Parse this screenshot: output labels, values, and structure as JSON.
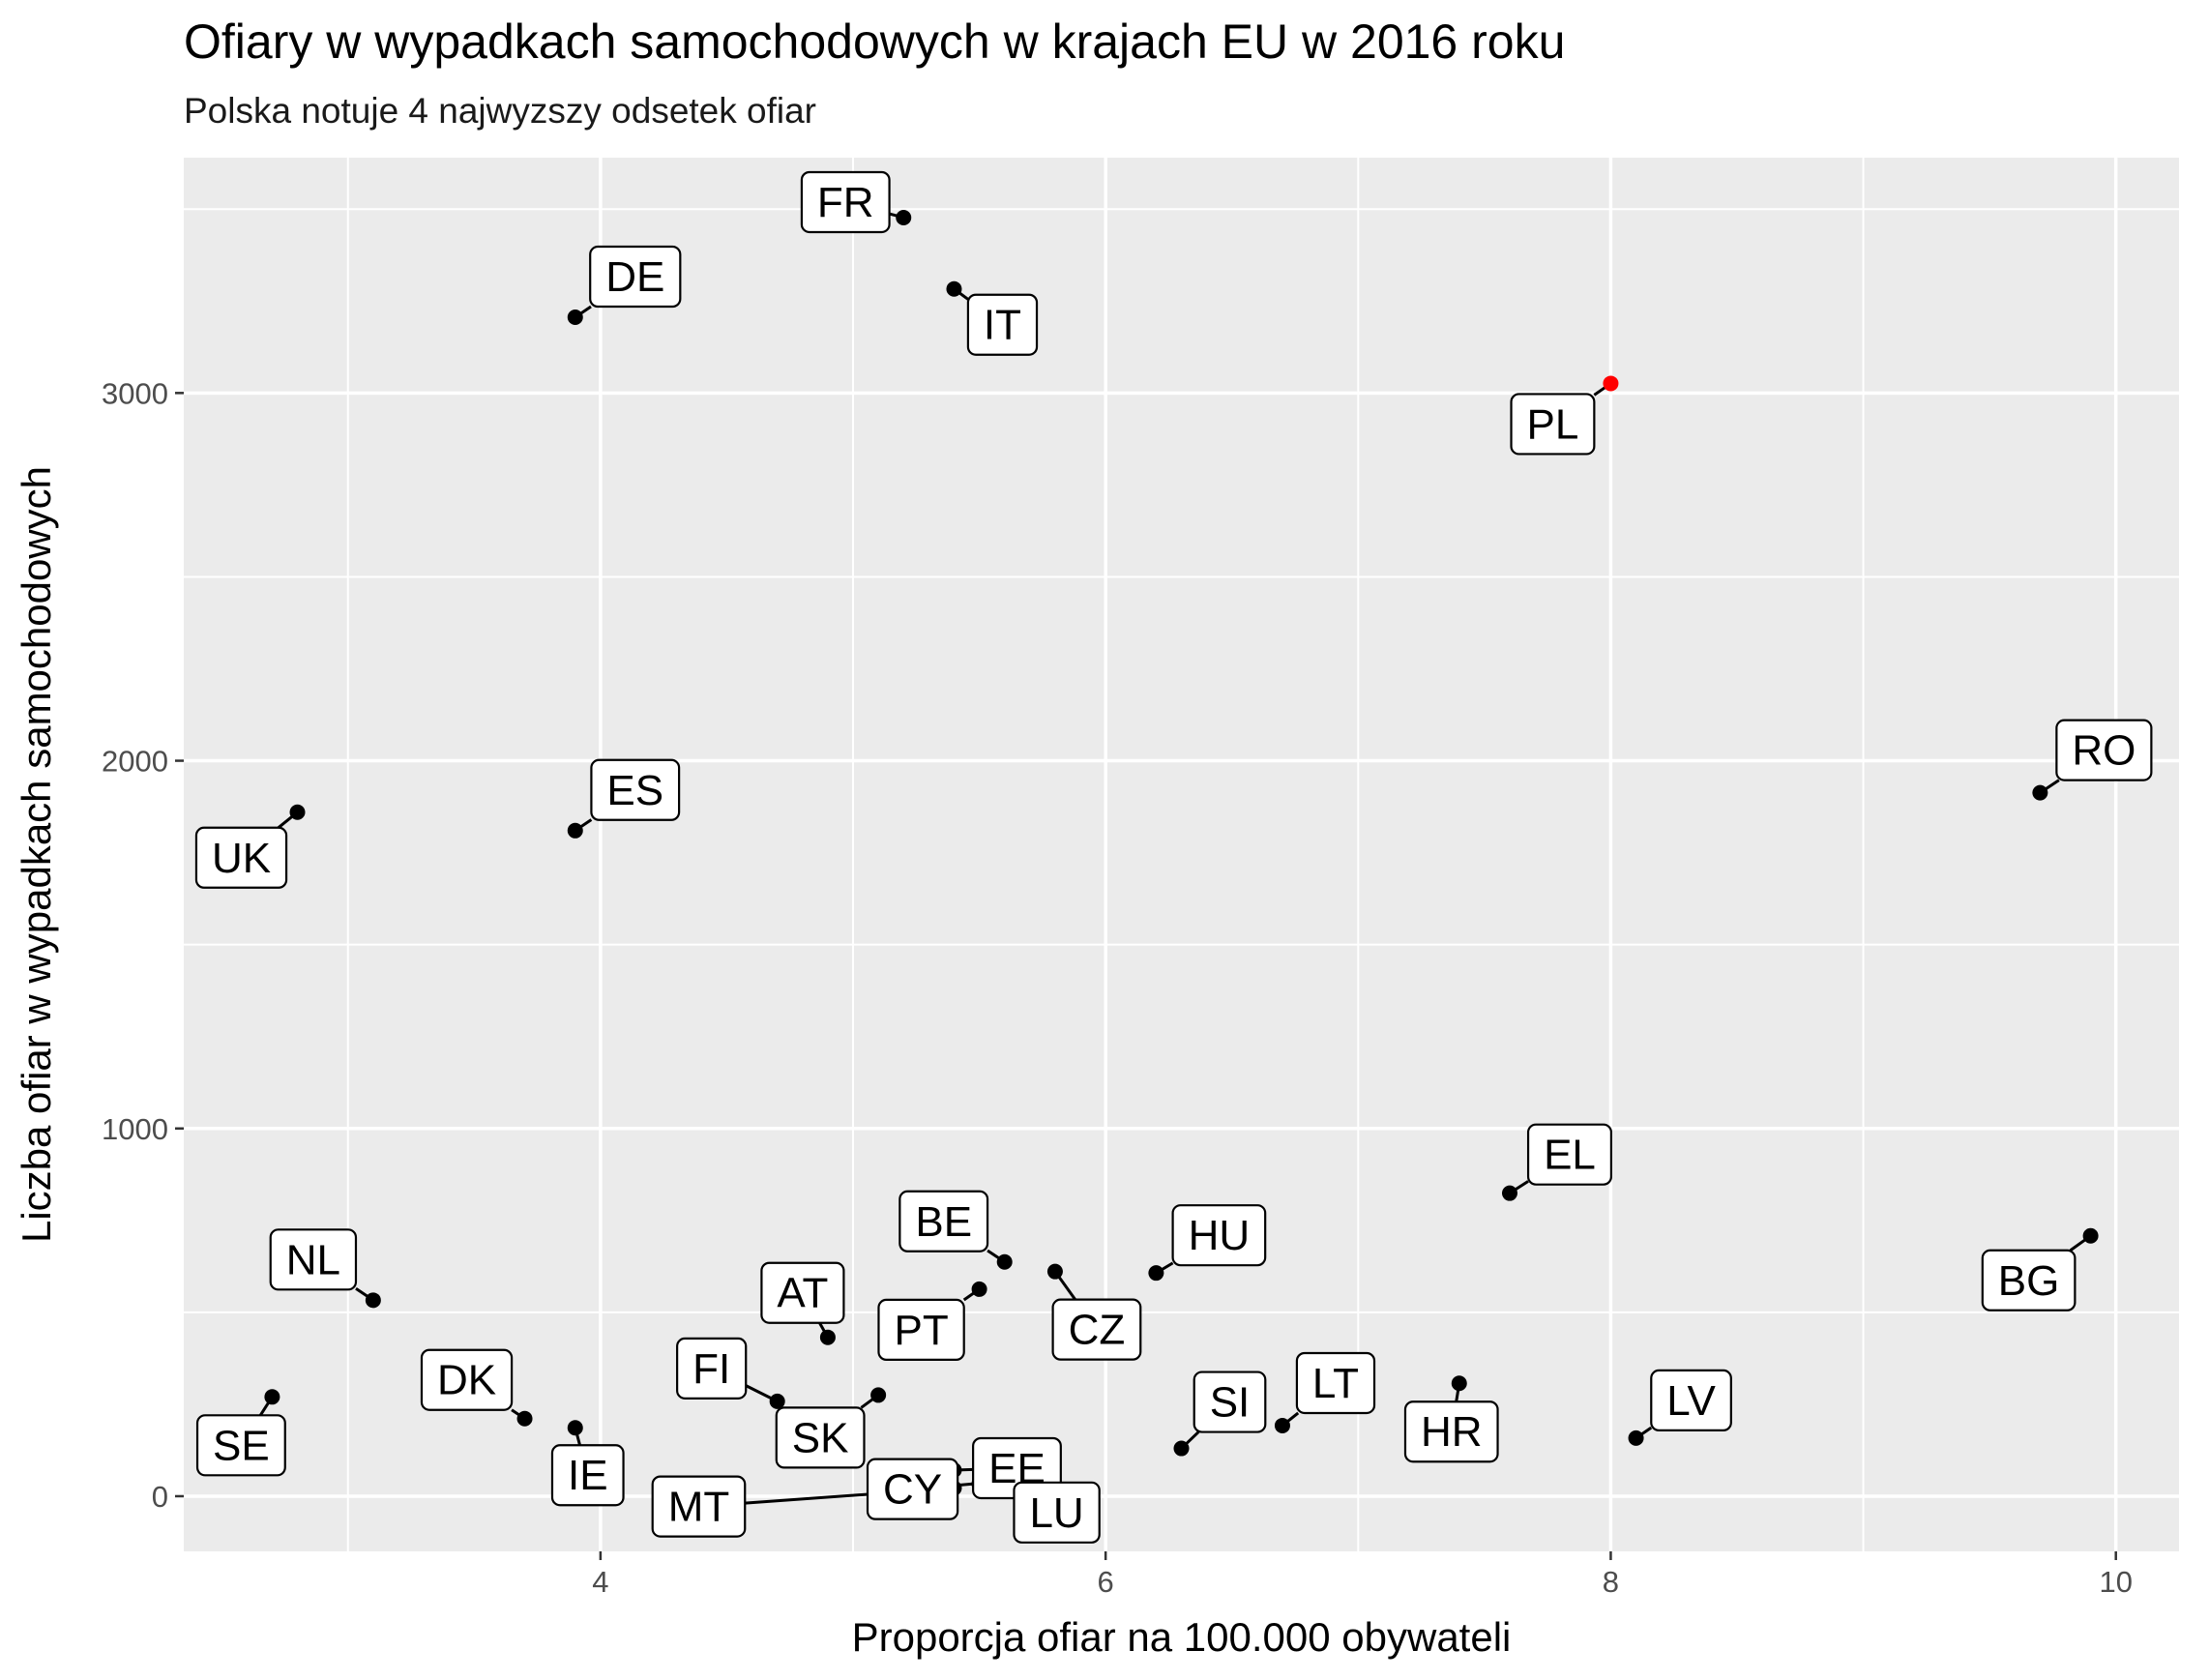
{
  "chart_data": {
    "type": "scatter",
    "title": "Ofiary w wypadkach samochodowych w krajach EU w 2016 roku",
    "subtitle": "Polska notuje 4 najwyzszy odsetek ofiar",
    "xlabel": "Proporcja ofiar na 100.000 obywateli",
    "ylabel": "Liczba ofiar w wypadkach samochodowych",
    "xlim": [
      2.35,
      10.25
    ],
    "ylim": [
      -150,
      3640
    ],
    "x_ticks": [
      4,
      6,
      8,
      10
    ],
    "x_tick_labels": [
      "4",
      "6",
      "8",
      "10"
    ],
    "y_ticks": [
      0,
      1000,
      2000,
      3000
    ],
    "y_tick_labels": [
      "0",
      "1000",
      "2000",
      "3000"
    ],
    "grid": true,
    "highlight_color": "#ff0000",
    "point_color": "#000000",
    "panel_color": "#ebebeb",
    "points": [
      {
        "label": "FR",
        "x": 5.2,
        "y": 3477,
        "highlight": false
      },
      {
        "label": "DE",
        "x": 3.9,
        "y": 3206,
        "highlight": false
      },
      {
        "label": "IT",
        "x": 5.4,
        "y": 3283,
        "highlight": false
      },
      {
        "label": "PL",
        "x": 8.0,
        "y": 3026,
        "highlight": true
      },
      {
        "label": "RO",
        "x": 9.7,
        "y": 1913,
        "highlight": false
      },
      {
        "label": "ES",
        "x": 3.9,
        "y": 1810,
        "highlight": false
      },
      {
        "label": "UK",
        "x": 2.8,
        "y": 1860,
        "highlight": false
      },
      {
        "label": "EL",
        "x": 7.6,
        "y": 824,
        "highlight": false
      },
      {
        "label": "BG",
        "x": 9.9,
        "y": 708,
        "highlight": false
      },
      {
        "label": "HU",
        "x": 6.2,
        "y": 607,
        "highlight": false
      },
      {
        "label": "BE",
        "x": 5.6,
        "y": 637,
        "highlight": false
      },
      {
        "label": "CZ",
        "x": 5.8,
        "y": 611,
        "highlight": false
      },
      {
        "label": "PT",
        "x": 5.5,
        "y": 563,
        "highlight": false
      },
      {
        "label": "NL",
        "x": 3.1,
        "y": 533,
        "highlight": false
      },
      {
        "label": "AT",
        "x": 4.9,
        "y": 432,
        "highlight": false
      },
      {
        "label": "HR",
        "x": 7.4,
        "y": 307,
        "highlight": false
      },
      {
        "label": "SE",
        "x": 2.7,
        "y": 270,
        "highlight": false
      },
      {
        "label": "FI",
        "x": 4.7,
        "y": 258,
        "highlight": false
      },
      {
        "label": "SK",
        "x": 5.1,
        "y": 275,
        "highlight": false
      },
      {
        "label": "DK",
        "x": 3.7,
        "y": 211,
        "highlight": false
      },
      {
        "label": "LT",
        "x": 6.7,
        "y": 192,
        "highlight": false
      },
      {
        "label": "IE",
        "x": 3.9,
        "y": 186,
        "highlight": false
      },
      {
        "label": "LV",
        "x": 8.1,
        "y": 158,
        "highlight": false
      },
      {
        "label": "SI",
        "x": 6.3,
        "y": 130,
        "highlight": false
      },
      {
        "label": "EE",
        "x": 5.4,
        "y": 71,
        "highlight": false
      },
      {
        "label": "CY",
        "x": 5.5,
        "y": 35,
        "highlight": false
      },
      {
        "label": "LU",
        "x": 5.5,
        "y": 32,
        "highlight": false
      },
      {
        "label": "MT",
        "x": 5.4,
        "y": 22,
        "highlight": false
      }
    ]
  }
}
